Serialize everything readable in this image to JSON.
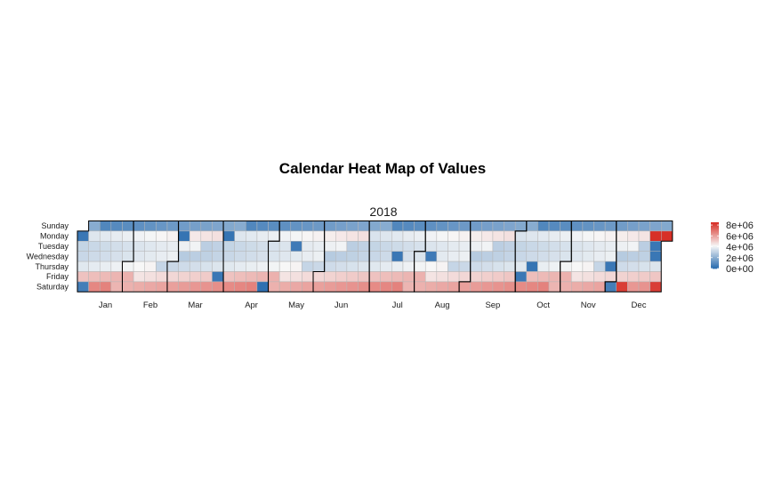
{
  "chart_data": {
    "type": "heatmap",
    "title": "Calendar Heat Map of Values",
    "panel_label": "2018",
    "year": 2018,
    "y_categories": [
      "Sunday",
      "Monday",
      "Tuesday",
      "Wednesday",
      "Thursday",
      "Friday",
      "Saturday"
    ],
    "x_categories": [
      "Jan",
      "Feb",
      "Mar",
      "Apr",
      "May",
      "Jun",
      "Jul",
      "Aug",
      "Sep",
      "Oct",
      "Nov",
      "Dec"
    ],
    "color_scale": {
      "min": 0,
      "max": 8500000,
      "low_color": "#2166ac",
      "mid_color": "#f7f7f7",
      "high_color": "#d73027",
      "breaks": [
        0,
        2000000,
        4000000,
        6000000,
        8000000
      ],
      "break_labels": [
        "0e+00",
        "2e+06",
        "4e+06",
        "6e+06",
        "8e+06"
      ]
    },
    "typical_by_weekday": [
      {
        "day": "Sunday",
        "value": 1500000
      },
      {
        "day": "Monday",
        "value": 4200000
      },
      {
        "day": "Tuesday",
        "value": 3600000
      },
      {
        "day": "Wednesday",
        "value": 3500000
      },
      {
        "day": "Thursday",
        "value": 3800000
      },
      {
        "day": "Friday",
        "value": 5200000
      },
      {
        "day": "Saturday",
        "value": 6200000
      }
    ],
    "notable_cells": [
      {
        "date": "2018-01-01",
        "value": 500000
      },
      {
        "date": "2018-01-06",
        "value": 700000
      },
      {
        "date": "2018-03-05",
        "value": 400000
      },
      {
        "date": "2018-03-30",
        "value": 500000
      },
      {
        "date": "2018-04-02",
        "value": 400000
      },
      {
        "date": "2018-04-28",
        "value": 300000
      },
      {
        "date": "2018-05-15",
        "value": 600000
      },
      {
        "date": "2018-07-18",
        "value": 500000
      },
      {
        "date": "2018-08-08",
        "value": 600000
      },
      {
        "date": "2018-10-05",
        "value": 500000
      },
      {
        "date": "2018-10-11",
        "value": 400000
      },
      {
        "date": "2018-11-29",
        "value": 500000
      },
      {
        "date": "2018-12-01",
        "value": 700000
      },
      {
        "date": "2018-12-08",
        "value": 8200000
      },
      {
        "date": "2018-12-24",
        "value": 8600000
      },
      {
        "date": "2018-12-25",
        "value": 500000
      },
      {
        "date": "2018-12-26",
        "value": 500000
      },
      {
        "date": "2018-12-29",
        "value": 8200000
      },
      {
        "date": "2018-12-31",
        "value": 8500000
      }
    ]
  }
}
